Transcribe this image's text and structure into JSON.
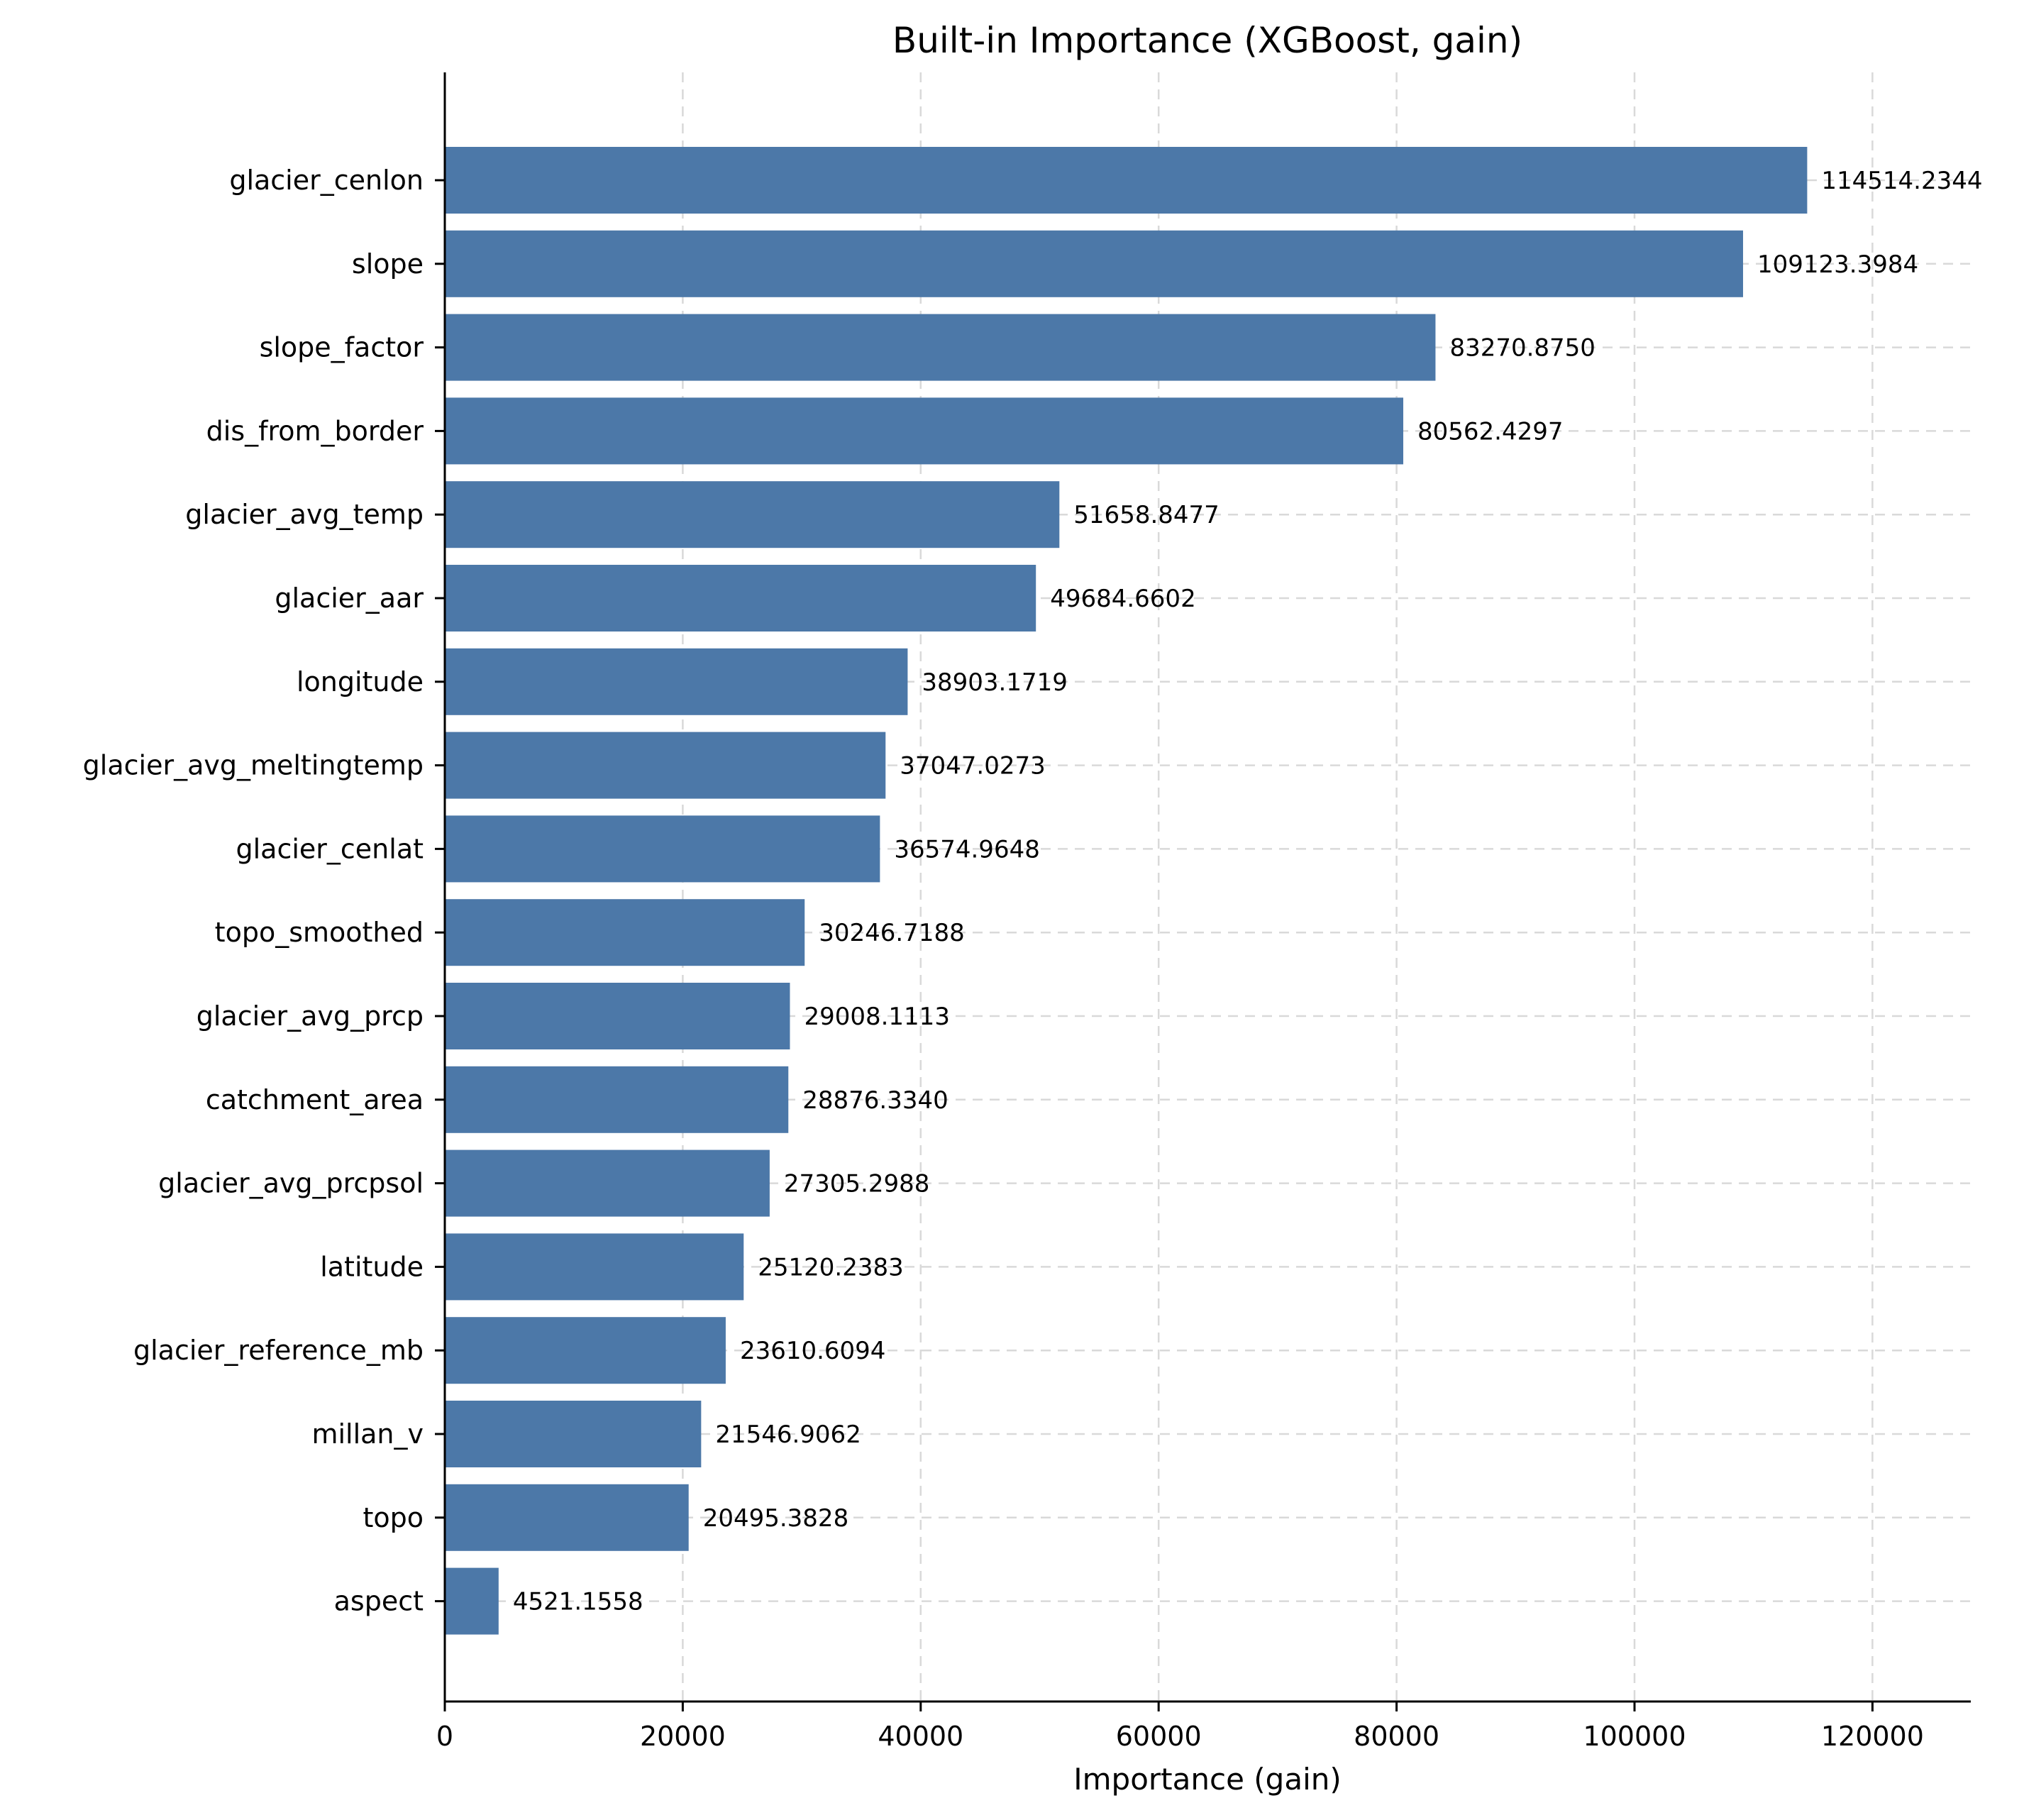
{
  "chart_data": {
    "type": "bar",
    "orientation": "horizontal",
    "title": "Built-in Importance (XGBoost, gain)",
    "xlabel": "Importance (gain)",
    "ylabel": "",
    "xlim": [
      0,
      128265.9
    ],
    "xticks": [
      0,
      20000,
      40000,
      60000,
      80000,
      100000,
      120000
    ],
    "grid": true,
    "bar_color": "#4c78a8",
    "categories": [
      "glacier_cenlon",
      "slope",
      "slope_factor",
      "dis_from_border",
      "glacier_avg_temp",
      "glacier_aar",
      "longitude",
      "glacier_avg_meltingtemp",
      "glacier_cenlat",
      "topo_smoothed",
      "glacier_avg_prcp",
      "catchment_area",
      "glacier_avg_prcpsol",
      "latitude",
      "glacier_reference_mb",
      "millan_v",
      "topo",
      "aspect"
    ],
    "values": [
      114514.2344,
      109123.3984,
      83270.875,
      80562.4297,
      51658.8477,
      49684.6602,
      38903.1719,
      37047.0273,
      36574.9648,
      30246.7188,
      29008.1113,
      28876.334,
      27305.2988,
      25120.2383,
      23610.6094,
      21546.9062,
      20495.3828,
      4521.1558
    ],
    "value_labels": [
      "114514.2344",
      "109123.3984",
      "83270.8750",
      "80562.4297",
      "51658.8477",
      "49684.6602",
      "38903.1719",
      "37047.0273",
      "36574.9648",
      "30246.7188",
      "29008.1113",
      "28876.3340",
      "27305.2988",
      "25120.2383",
      "23610.6094",
      "21546.9062",
      "20495.3828",
      "4521.1558"
    ]
  }
}
